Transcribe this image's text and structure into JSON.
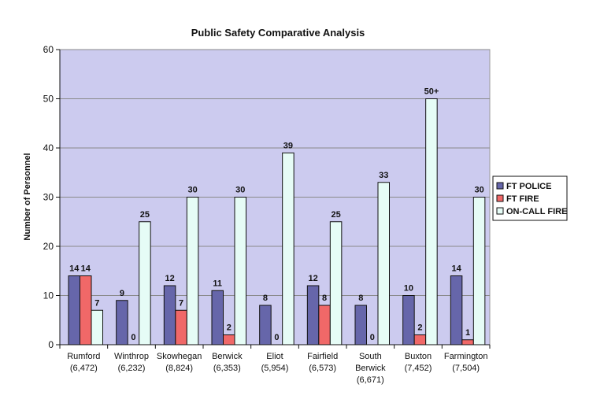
{
  "chart_data": {
    "type": "bar",
    "title": "Public Safety Comparative Analysis",
    "xlabel": "",
    "ylabel": "Number of Personnel",
    "ylim": [
      0,
      60
    ],
    "yticks": [
      0,
      10,
      20,
      30,
      40,
      50,
      60
    ],
    "grid": true,
    "legend_position": "right",
    "categories": [
      [
        "Rumford",
        "(6,472)"
      ],
      [
        "Winthrop",
        "(6,232)"
      ],
      [
        "Skowhegan",
        "(8,824)"
      ],
      [
        "Berwick",
        "(6,353)"
      ],
      [
        "Eliot",
        "(5,954)"
      ],
      [
        "Fairfield",
        "(6,573)"
      ],
      [
        "South",
        "Berwick",
        "(6,671)"
      ],
      [
        "Buxton",
        "(7,452)"
      ],
      [
        "Farmington",
        "(7,504)"
      ]
    ],
    "series": [
      {
        "name": "FT POLICE",
        "color": "#6666aa",
        "values": [
          14,
          9,
          12,
          11,
          8,
          12,
          8,
          10,
          14
        ],
        "labels": [
          "14",
          "9",
          "12",
          "11",
          "8",
          "12",
          "8",
          "10",
          "14"
        ]
      },
      {
        "name": "FT FIRE",
        "color": "#f06868",
        "values": [
          14,
          0,
          7,
          2,
          0,
          8,
          0,
          2,
          1
        ],
        "labels": [
          "14",
          "0",
          "7",
          "2",
          "0",
          "8",
          "0",
          "2",
          "1"
        ]
      },
      {
        "name": "ON-CALL FIRE",
        "color": "#e6fcf6",
        "values": [
          7,
          25,
          30,
          30,
          39,
          25,
          33,
          50,
          30
        ],
        "labels": [
          "7",
          "25",
          "30",
          "30",
          "39",
          "25",
          "33",
          "50+",
          "30"
        ]
      }
    ]
  },
  "colors": {
    "plot_background": "#cccbef",
    "gridline": "#8a8a8a",
    "bar_outline": "#111111"
  }
}
